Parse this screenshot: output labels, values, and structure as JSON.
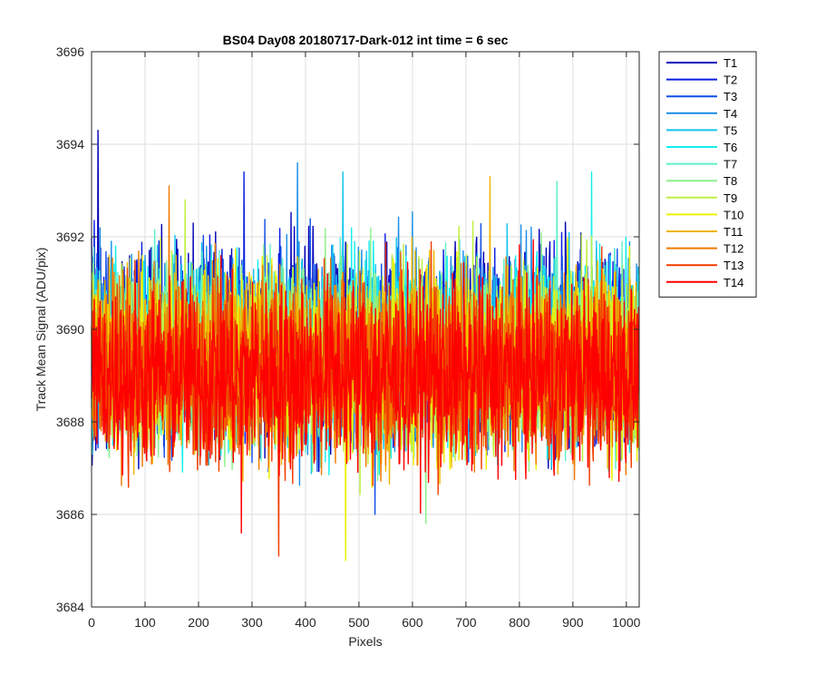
{
  "chart_data": {
    "type": "line",
    "title": "BS04 Day08 20180717-Dark-012 int time = 6 sec",
    "xlabel": "Pixels",
    "ylabel": "Track Mean Signal (ADU/pix)",
    "xlim": [
      0,
      1024
    ],
    "ylim": [
      3684,
      3696
    ],
    "xticks": [
      0,
      100,
      200,
      300,
      400,
      500,
      600,
      700,
      800,
      900,
      1000
    ],
    "yticks": [
      3684,
      3686,
      3688,
      3690,
      3692,
      3694,
      3696
    ],
    "grid": true,
    "legend_placement": "outside-right-top",
    "n_points": 1024,
    "series": [
      {
        "name": "T1",
        "color": "#0000b8",
        "mean": 3689.7,
        "spread": 1.05,
        "peak_x": 12,
        "peak_y": 3694.3
      },
      {
        "name": "T2",
        "color": "#0a1ee0",
        "mean": 3689.7,
        "spread": 1.0,
        "peak_x": 285,
        "peak_y": 3693.4
      },
      {
        "name": "T3",
        "color": "#1050e6",
        "mean": 3689.6,
        "spread": 1.0,
        "peak_x": 530,
        "peak_y": 3686.0
      },
      {
        "name": "T4",
        "color": "#1a8ee8",
        "mean": 3689.6,
        "spread": 1.0,
        "peak_x": 385,
        "peak_y": 3693.6
      },
      {
        "name": "T5",
        "color": "#10c4ee",
        "mean": 3689.6,
        "spread": 1.0,
        "peak_x": 470,
        "peak_y": 3693.4
      },
      {
        "name": "T6",
        "color": "#14eeee",
        "mean": 3689.5,
        "spread": 1.0,
        "peak_x": 935,
        "peak_y": 3693.4
      },
      {
        "name": "T7",
        "color": "#5cf0c8",
        "mean": 3689.5,
        "spread": 1.0,
        "peak_x": 870,
        "peak_y": 3693.2
      },
      {
        "name": "T8",
        "color": "#8cf08c",
        "mean": 3689.4,
        "spread": 1.0,
        "peak_x": 625,
        "peak_y": 3685.8
      },
      {
        "name": "T9",
        "color": "#c0f040",
        "mean": 3689.4,
        "spread": 1.0,
        "peak_x": 175,
        "peak_y": 3692.8
      },
      {
        "name": "T10",
        "color": "#f0f000",
        "mean": 3689.3,
        "spread": 1.0,
        "peak_x": 475,
        "peak_y": 3685.0
      },
      {
        "name": "T11",
        "color": "#f0b400",
        "mean": 3689.3,
        "spread": 1.0,
        "peak_x": 745,
        "peak_y": 3693.3
      },
      {
        "name": "T12",
        "color": "#f07800",
        "mean": 3689.2,
        "spread": 1.0,
        "peak_x": 145,
        "peak_y": 3693.1
      },
      {
        "name": "T13",
        "color": "#f03c00",
        "mean": 3689.1,
        "spread": 1.0,
        "peak_x": 350,
        "peak_y": 3685.1
      },
      {
        "name": "T14",
        "color": "#ff0000",
        "mean": 3689.0,
        "spread": 1.0,
        "peak_x": 280,
        "peak_y": 3685.6
      }
    ]
  }
}
